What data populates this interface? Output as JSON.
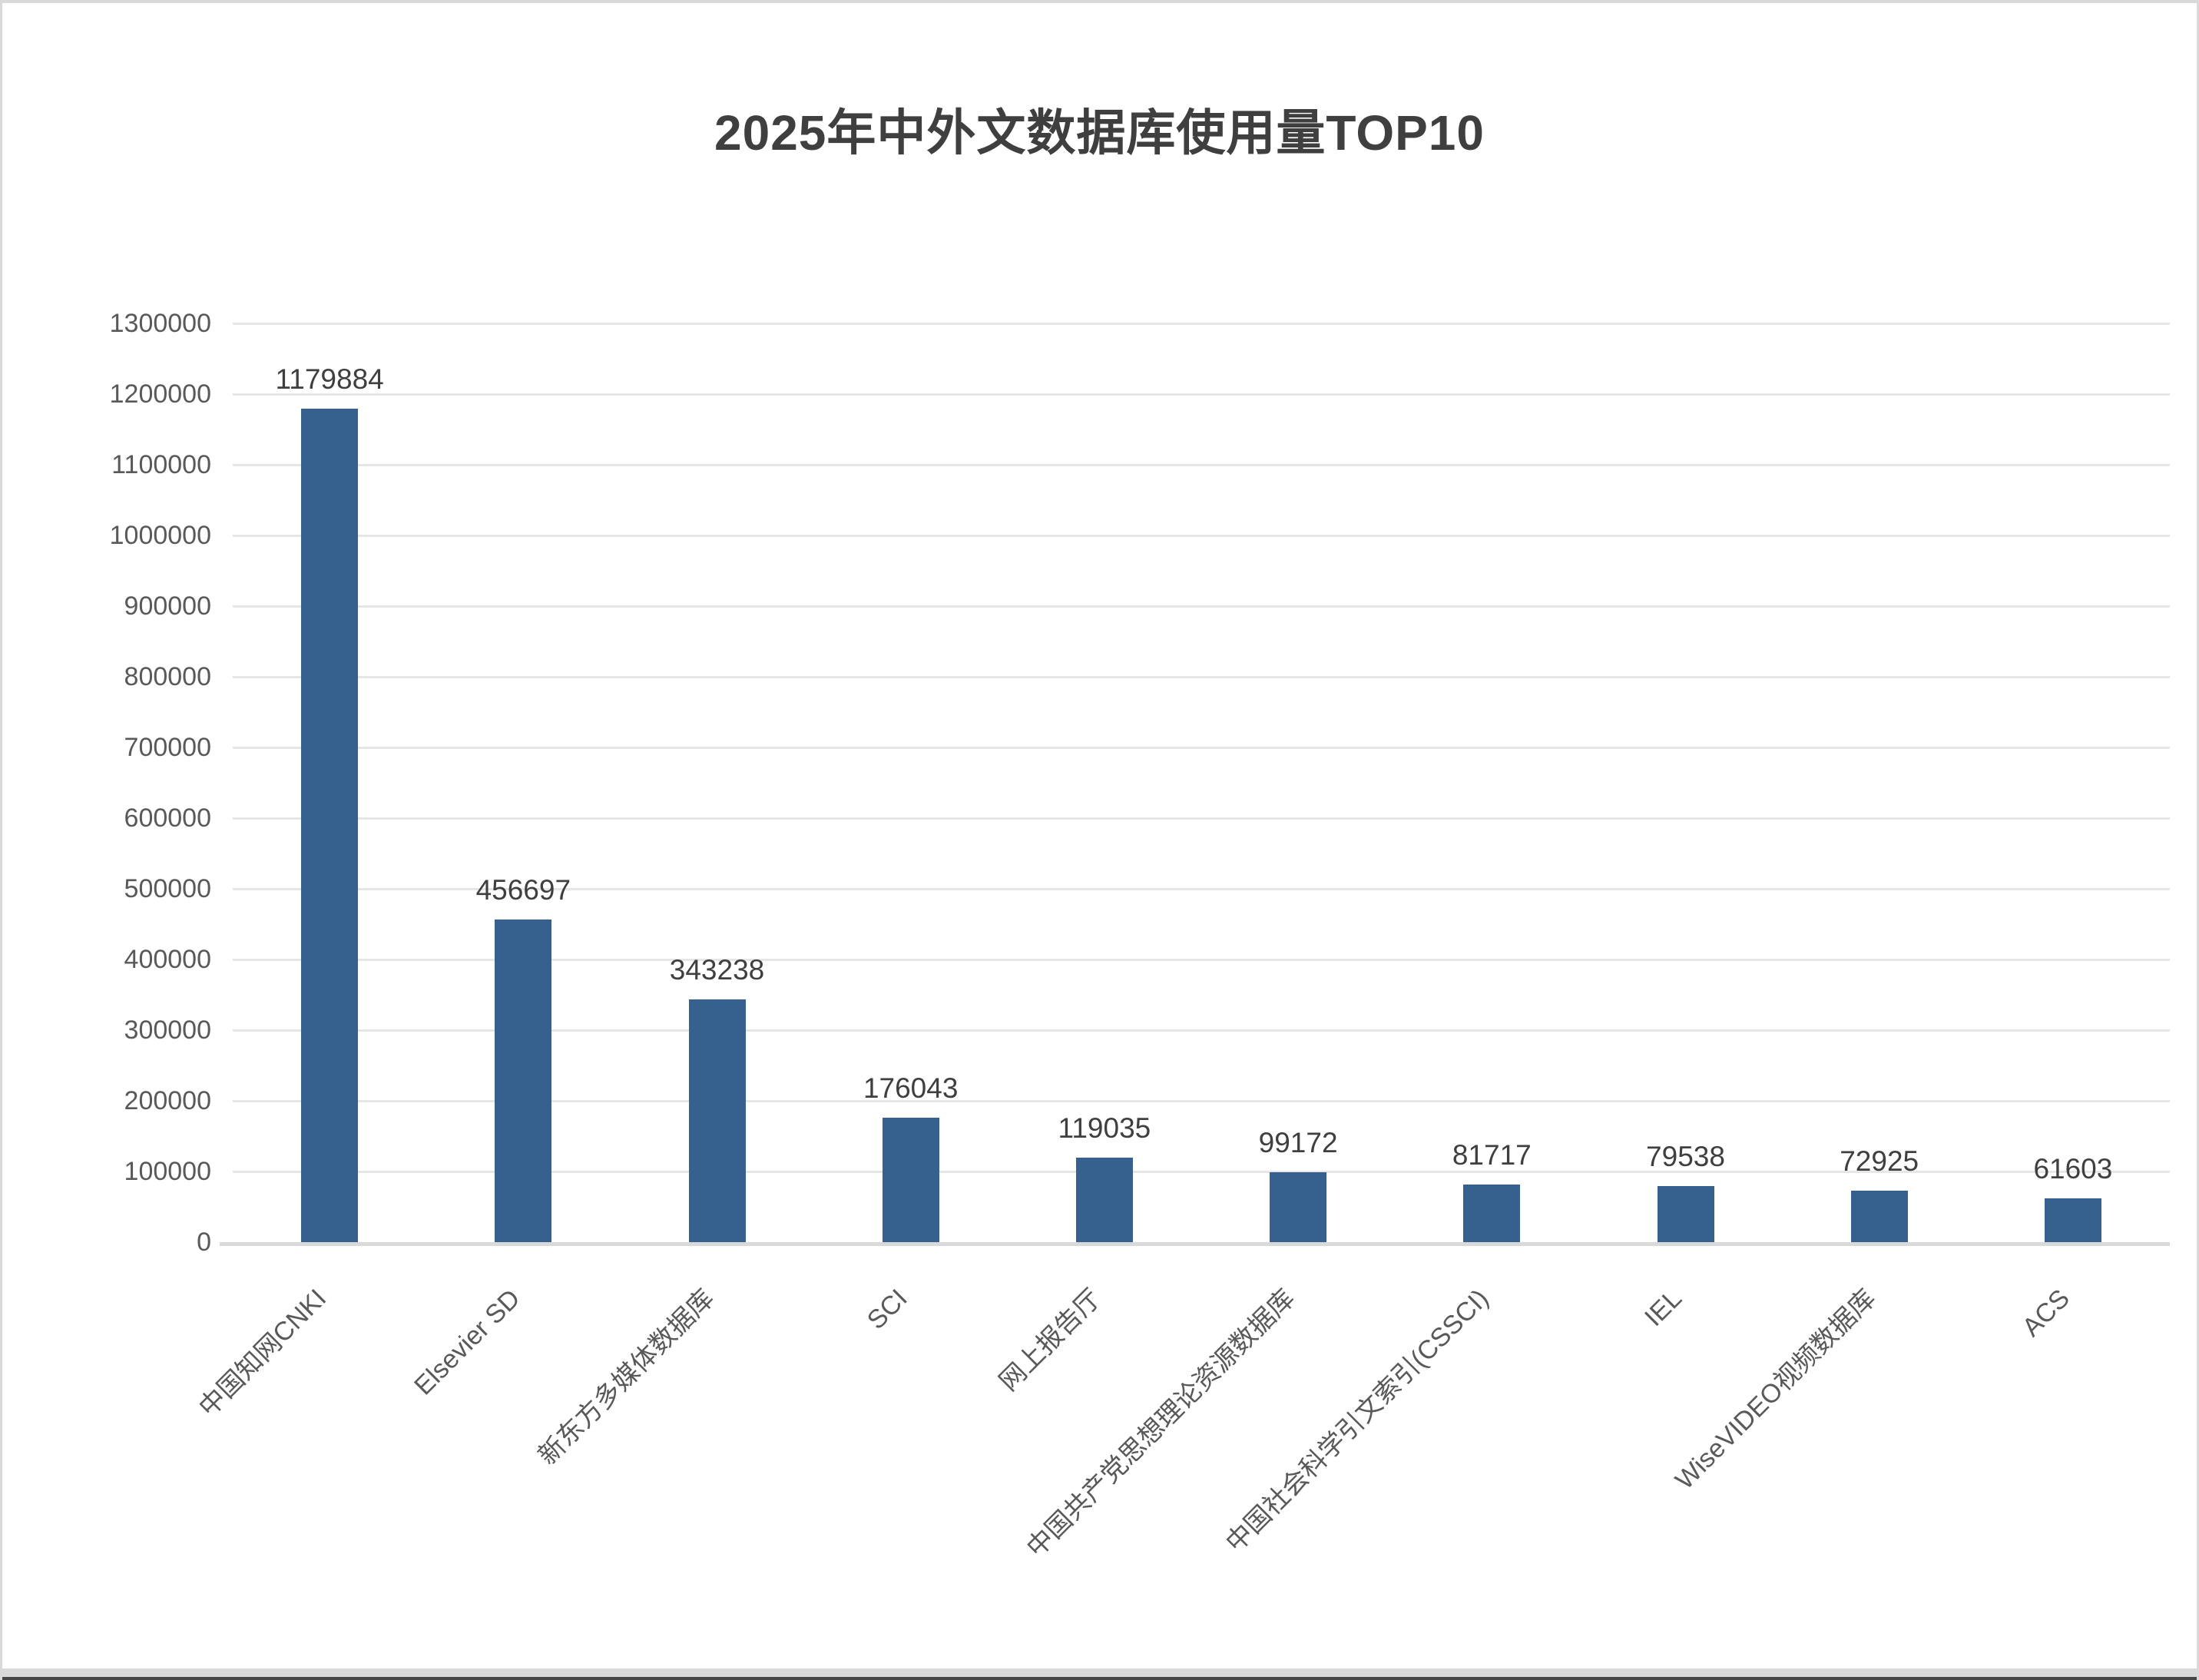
{
  "chart_data": {
    "type": "bar",
    "title": "2025年中外文数据库使用量TOP10",
    "categories": [
      "中国知网CNKI",
      "Elsevier SD",
      "新东方多媒体数据库",
      "SCI",
      "网上报告厅",
      "中国共产党思想理论资源数据库",
      "中国社会科学引文索引(CSSCI)",
      "IEL",
      "WiseVIDEO视频数据库",
      "ACS"
    ],
    "values": [
      1179884,
      456697,
      343238,
      176043,
      119035,
      99172,
      81717,
      79538,
      72925,
      61603
    ],
    "value_labels": [
      "1179884",
      "456697",
      "343238",
      "176043",
      "119035",
      "99172",
      "81717",
      "79538",
      "72925",
      "61603"
    ],
    "xlabel": "",
    "ylabel": "",
    "ylim": [
      0,
      1300000
    ],
    "ytick_step": 100000,
    "grid": true,
    "legend": false,
    "colors": {
      "bar": "#36618f",
      "gridline": "#e6e6e6",
      "axis_line": "#d9d9d9",
      "tick_label": "#595959",
      "value_label": "#3f3f3f",
      "title": "#3f3f3f"
    }
  }
}
